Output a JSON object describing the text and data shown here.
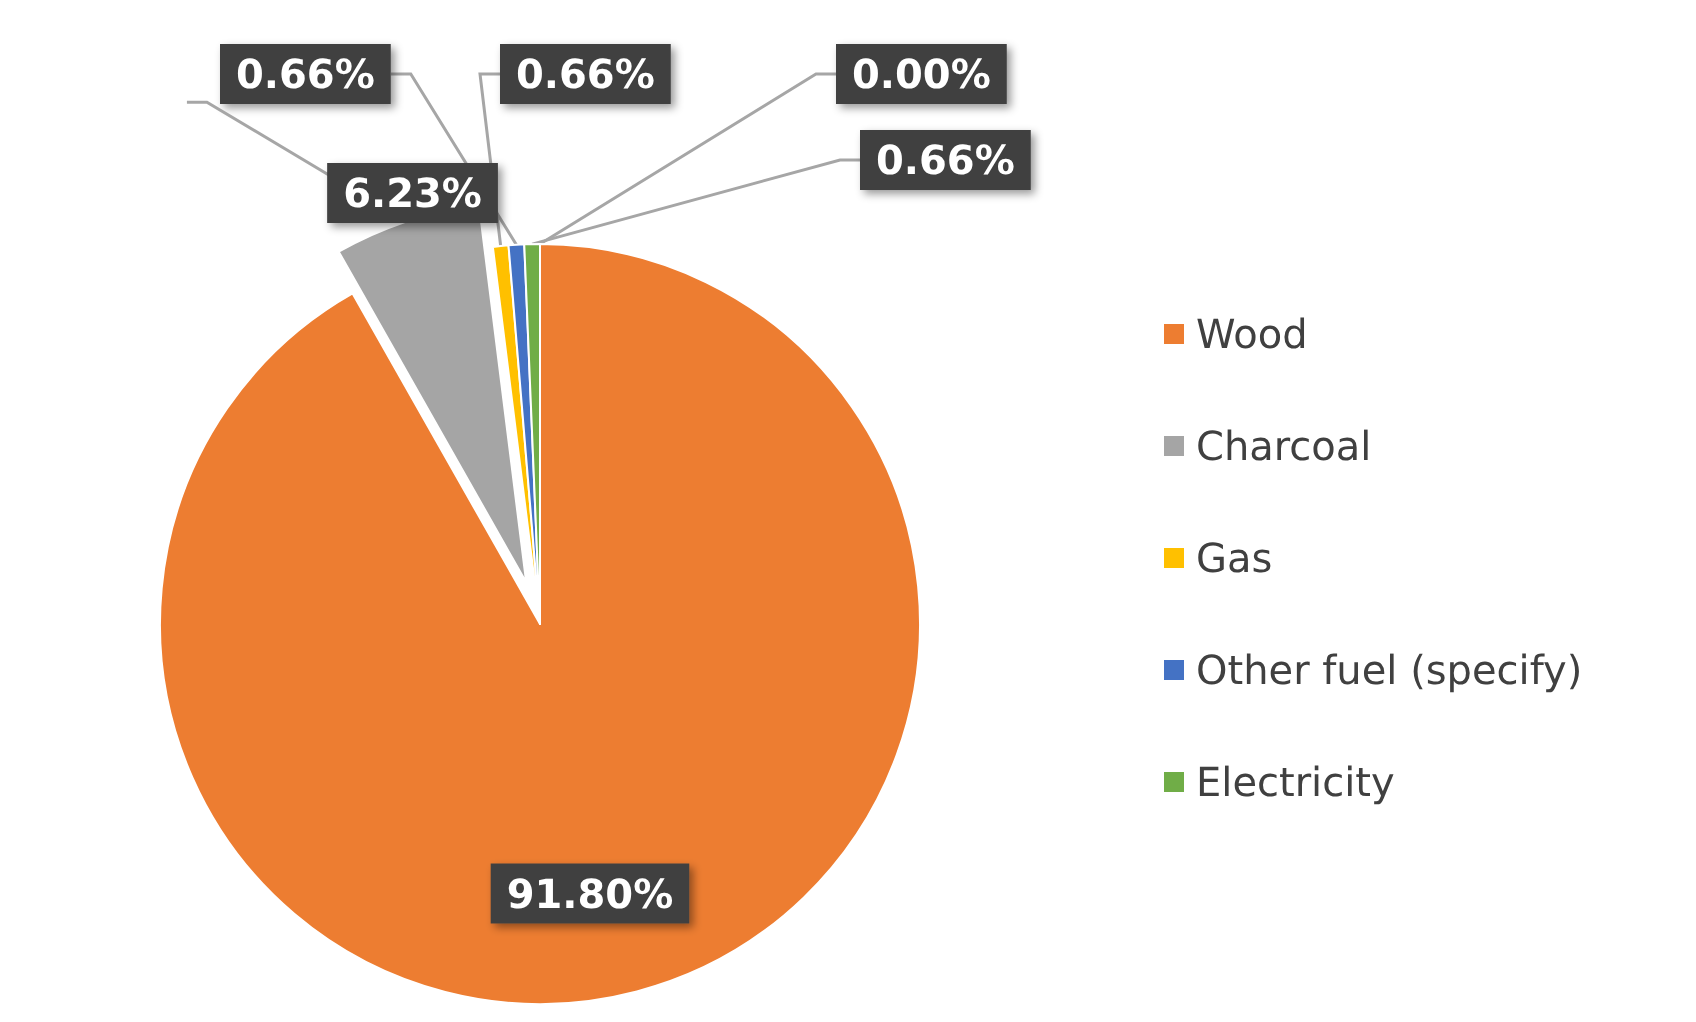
{
  "chart_data": {
    "type": "pie",
    "categories": [
      "Wood",
      "Charcoal",
      "Gas",
      "Other fuel (specify)",
      "Electricity",
      null
    ],
    "values": [
      91.8,
      6.23,
      0.66,
      0.66,
      0.66,
      0.0
    ],
    "colors": [
      "#ed7d31",
      "#a5a5a5",
      "#ffc000",
      "#4472c4",
      "#70ad47",
      "#5b9bd5"
    ],
    "value_labels": [
      "91.80%",
      "6.23%",
      "0.66%",
      "0.66%",
      "0.66%",
      "0.00%"
    ],
    "legend": "right"
  }
}
